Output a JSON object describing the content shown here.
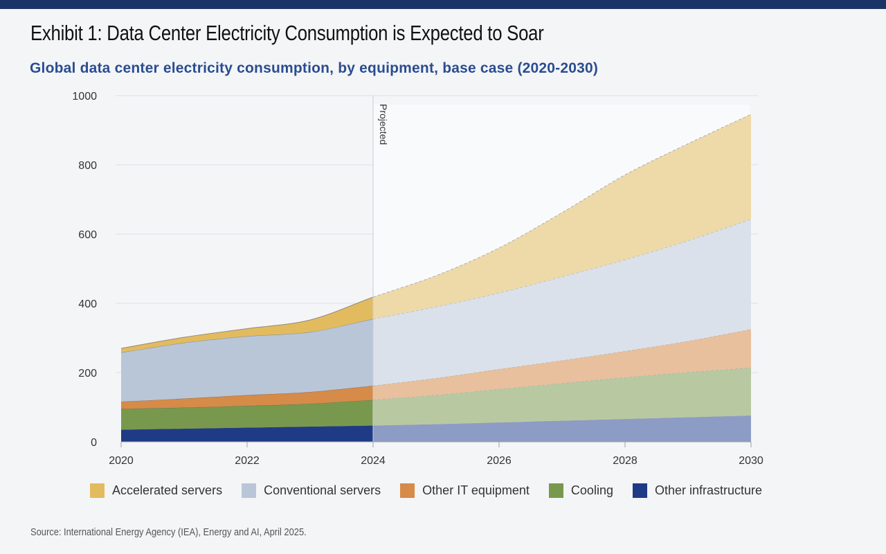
{
  "title": "Exhibit 1: Data Center Electricity Consumption is Expected to Soar",
  "subtitle": "Global data center electricity consumption, by equipment, base case (2020-2030)",
  "source": "Source: International Energy Agency (IEA), Energy and AI, April 2025.",
  "colors": {
    "header_bar": "#1b3466",
    "subtitle": "#2a4d91"
  },
  "chart_data": {
    "type": "area",
    "stacked": true,
    "x": [
      2020,
      2021,
      2022,
      2023,
      2024,
      2025,
      2026,
      2027,
      2028,
      2029,
      2030
    ],
    "x_ticks": [
      2020,
      2022,
      2024,
      2026,
      2028,
      2030
    ],
    "y_ticks": [
      0,
      200,
      400,
      600,
      800,
      1000
    ],
    "xlim": [
      2020,
      2030
    ],
    "ylim": [
      0,
      1000
    ],
    "grid": "horizontal",
    "legend_position": "bottom",
    "projection_start": 2024,
    "projection_label": "Projected",
    "series": [
      {
        "name": "Other infrastructure",
        "color": "#1f3b85",
        "projected_color": "#8d9cc4",
        "values": [
          35,
          38,
          41,
          44,
          47,
          51,
          56,
          61,
          66,
          71,
          76
        ]
      },
      {
        "name": "Cooling",
        "color": "#78994d",
        "projected_color": "#b8c9a2",
        "values": [
          60,
          61,
          63,
          66,
          74,
          84,
          96,
          108,
          120,
          130,
          138
        ]
      },
      {
        "name": "Other IT equipment",
        "color": "#d68b48",
        "projected_color": "#e8c09d",
        "values": [
          21,
          26,
          31,
          34,
          41,
          49,
          58,
          66,
          76,
          90,
          111
        ]
      },
      {
        "name": "Conventional servers",
        "color": "#b9c6d8",
        "projected_color": "#dae1ea",
        "values": [
          142,
          161,
          170,
          173,
          193,
          206,
          220,
          242,
          264,
          290,
          318
        ]
      },
      {
        "name": "Accelerated servers",
        "color": "#e3bb5f",
        "projected_color": "#eed9a8",
        "values": [
          12,
          16,
          22,
          35,
          63,
          90,
          130,
          185,
          245,
          280,
          303
        ]
      }
    ]
  }
}
